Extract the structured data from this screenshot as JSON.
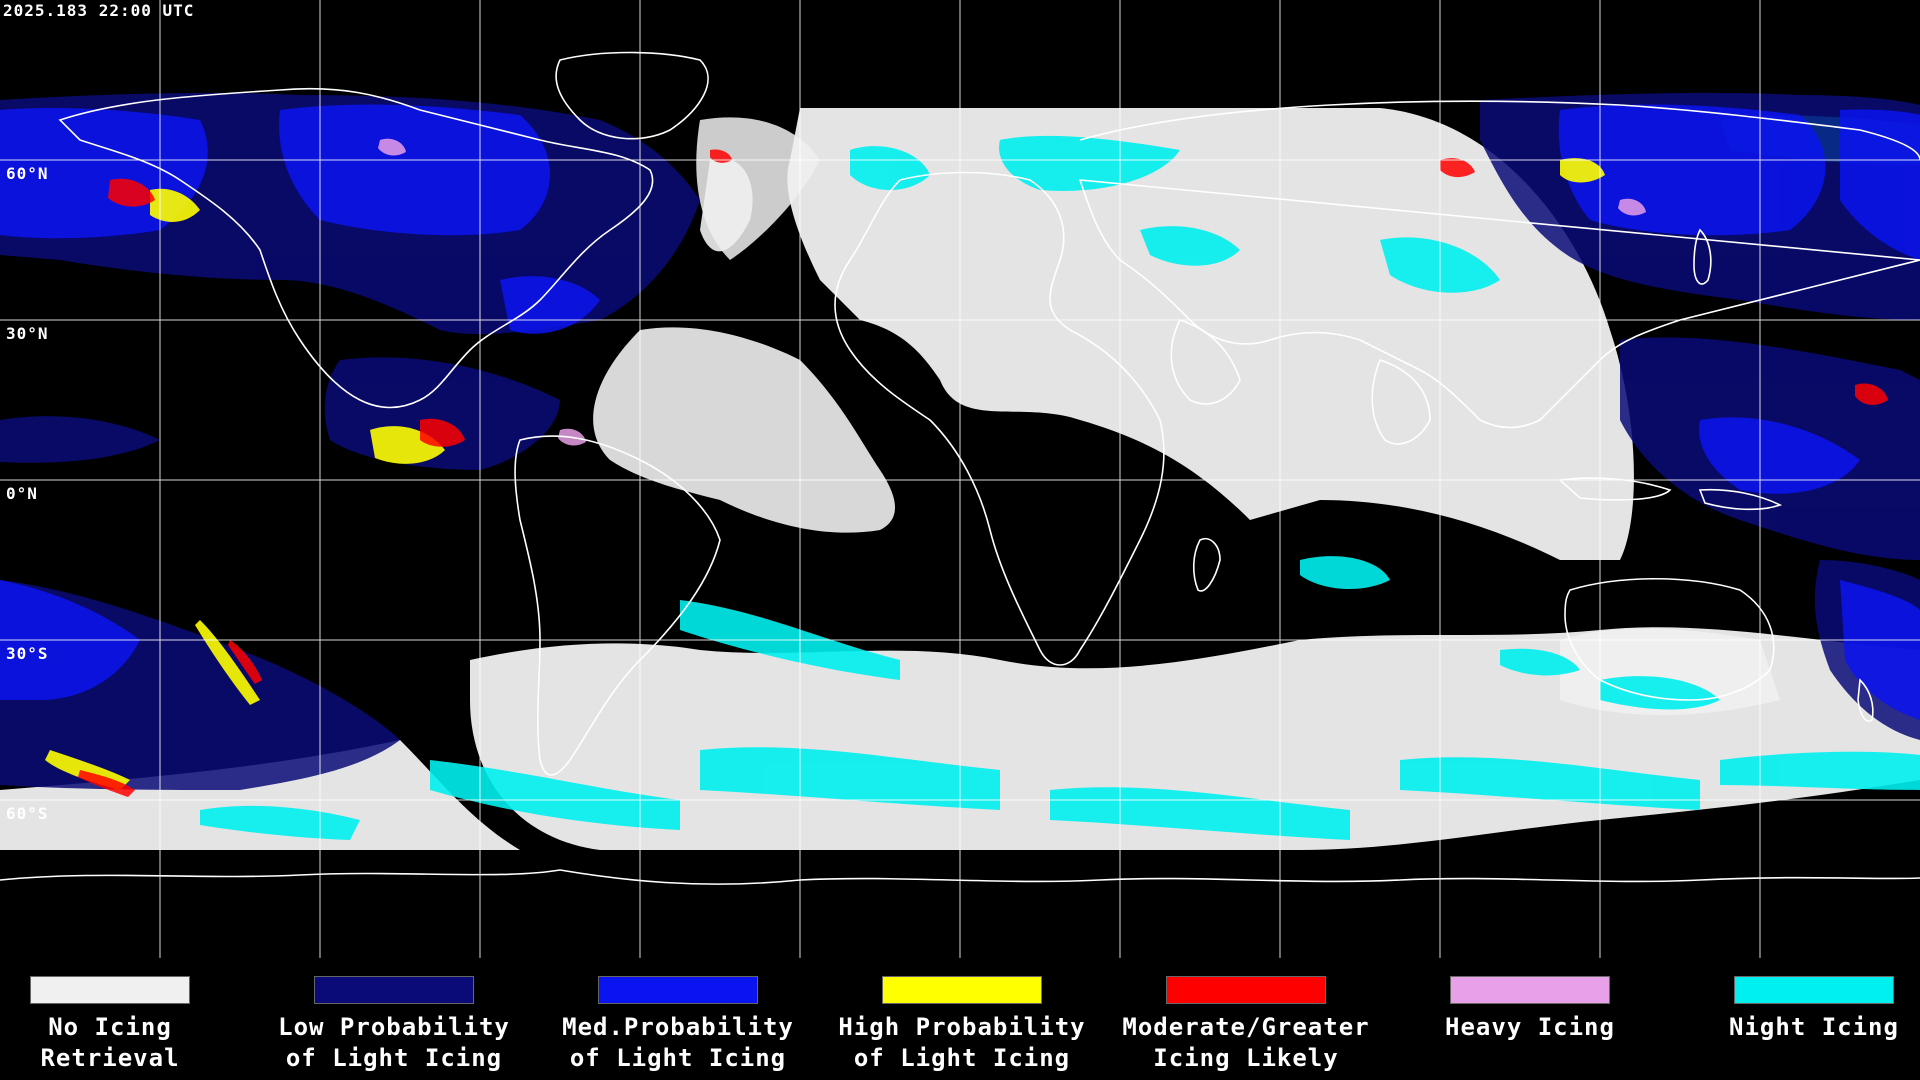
{
  "map": {
    "timestamp": "2025.183 22:00 UTC",
    "projection": "equirectangular",
    "latitude_labels": [
      "60°N",
      "30°N",
      "0°N",
      "30°S",
      "60°S"
    ],
    "background_color": "#000000",
    "grid_color": "#ffffff",
    "coastline_color": "#ffffff"
  },
  "legend": [
    {
      "label": "No Icing\nRetrieval",
      "color": "#f0f0f0"
    },
    {
      "label": "Low Probability\nof Light Icing",
      "color": "#0a0a78"
    },
    {
      "label": "Med.Probability\nof Light Icing",
      "color": "#0a14f0"
    },
    {
      "label": "High Probability\nof Light Icing",
      "color": "#ffff00"
    },
    {
      "label": "Moderate/Greater\nIcing Likely",
      "color": "#ff0000"
    },
    {
      "label": "Heavy Icing",
      "color": "#e8a0e8"
    },
    {
      "label": "Night Icing",
      "color": "#00f0f0"
    }
  ]
}
